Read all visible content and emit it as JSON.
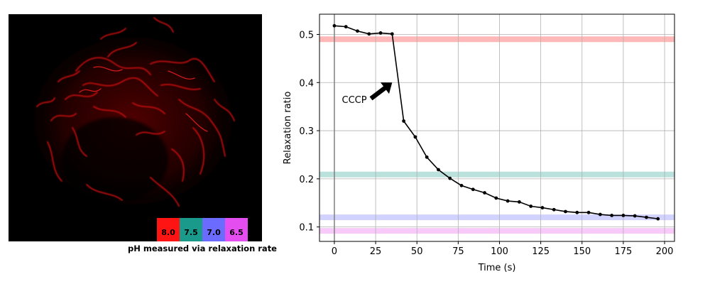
{
  "image_panel": {
    "caption": "pH measured via relaxation rate",
    "legend": [
      {
        "label": "8.0",
        "color": "#ff1414"
      },
      {
        "label": "7.5",
        "color": "#1a9a8a"
      },
      {
        "label": "7.0",
        "color": "#6b6bff"
      },
      {
        "label": "6.5",
        "color": "#e44ef0"
      }
    ]
  },
  "chart_data": {
    "type": "line",
    "xlabel": "Time (s)",
    "ylabel": "Relaxation ratio",
    "xlim": [
      -9,
      206
    ],
    "ylim": [
      0.07,
      0.542
    ],
    "xticks": [
      0,
      25,
      50,
      75,
      100,
      125,
      150,
      175,
      200
    ],
    "yticks": [
      0.1,
      0.2,
      0.3,
      0.4,
      0.5
    ],
    "grid": true,
    "vline_x": 0,
    "series": [
      {
        "color": "#000000",
        "x": [
          0,
          7,
          14,
          21,
          28,
          35,
          42,
          49,
          56,
          63,
          70,
          77,
          84,
          91,
          98,
          105,
          112,
          119,
          126,
          133,
          140,
          147,
          154,
          161,
          168,
          175,
          182,
          189,
          196
        ],
        "y": [
          0.518,
          0.516,
          0.507,
          0.501,
          0.503,
          0.501,
          0.32,
          0.287,
          0.245,
          0.219,
          0.201,
          0.186,
          0.178,
          0.171,
          0.16,
          0.154,
          0.152,
          0.143,
          0.14,
          0.136,
          0.132,
          0.13,
          0.13,
          0.126,
          0.124,
          0.124,
          0.123,
          0.12,
          0.117
        ]
      }
    ],
    "reference_bands": [
      {
        "y": 0.49,
        "color": "#ff1414"
      },
      {
        "y": 0.209,
        "color": "#1a9a8a"
      },
      {
        "y": 0.12,
        "color": "#6b6bff"
      },
      {
        "y": 0.092,
        "color": "#e44ef0"
      }
    ],
    "annotation": {
      "text": "CCCP",
      "text_x": 11,
      "text_y": 0.352,
      "arrow_to_x": 35,
      "arrow_to_y": 0.4
    }
  }
}
